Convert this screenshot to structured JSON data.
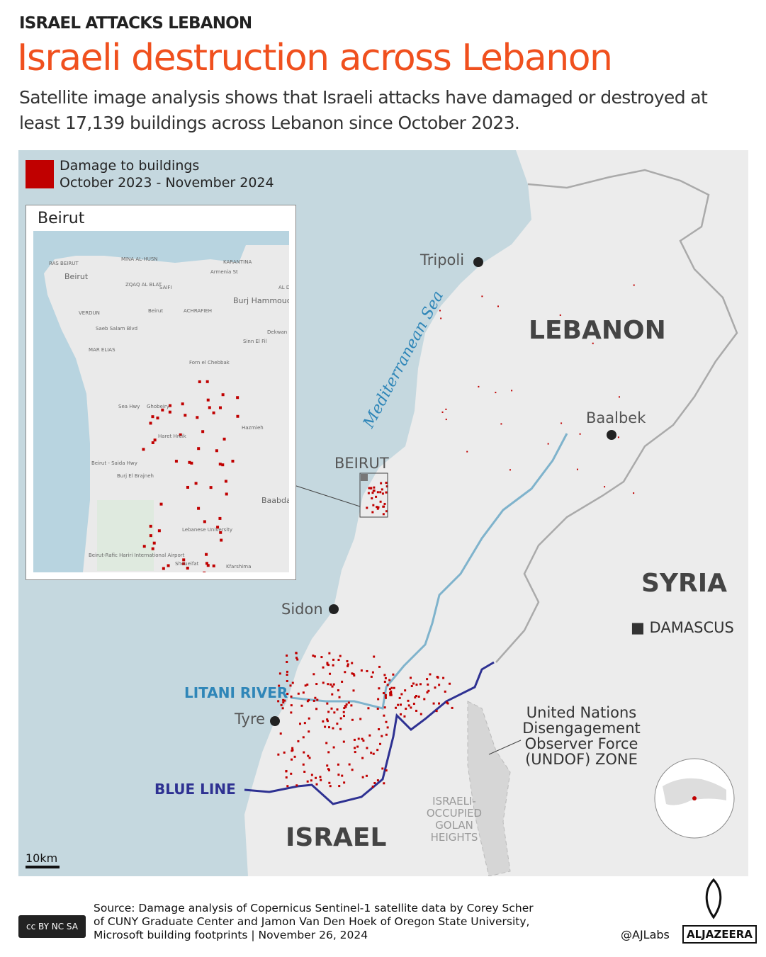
{
  "header": {
    "kicker": "ISRAEL ATTACKS LEBANON",
    "title": "Israeli destruction across Lebanon",
    "subtitle": "Satellite image analysis shows that Israeli attacks have damaged or destroyed at least 17,139 buildings across Lebanon since October 2023."
  },
  "legend": {
    "label": "Damage to buildings",
    "period": "October 2023 - November 2024",
    "color": "#c00000"
  },
  "inset": {
    "title": "Beirut",
    "labels": [
      "RAS BEIRUT",
      "MINA AL-HUSN",
      "KARANTINA",
      "Beirut",
      "ZQAQ AL BLAT",
      "SAIFI",
      "Armenia St",
      "AL D",
      "Burj Hammoud",
      "Beirut",
      "VERDUN",
      "ACHRAFIEH",
      "Dekwan",
      "Saeb Salam Blvd",
      "Sinn El Fil",
      "MAR ELIAS",
      "Forn el Chebbak",
      "Ghobeiry",
      "Hazmieh",
      "Haret Hreik",
      "Sea Hwy",
      "Beirut - Saida Hwy",
      "Burj El Brajneh",
      "Baabda",
      "Lebanese University",
      "Beirut-Rafic Hariri International Airport",
      "Shoueifat",
      "Kfarshima"
    ]
  },
  "map": {
    "sea_label": "Mediterranean Sea",
    "countries": {
      "lebanon": "LEBANON",
      "syria": "SYRIA",
      "israel": "ISRAEL"
    },
    "cities": {
      "tripoli": "Tripoli",
      "baalbek": "Baalbek",
      "beirut": "BEIRUT",
      "sidon": "Sidon",
      "tyre": "Tyre",
      "damascus": "DAMASCUS"
    },
    "litani": "LITANI RIVER",
    "blue_line": "BLUE LINE",
    "undof": "United Nations Disengagement Observer Force (UNDOF) ZONE",
    "golan": "ISRAELI-OCCUPIED GOLAN HEIGHTS",
    "scale": "10km",
    "colors": {
      "sea": "#c5d8df",
      "land": "#ececec",
      "river": "#7fb3cc",
      "blue_line": "#2e3192",
      "damage": "#c00000"
    }
  },
  "footer": {
    "source_line1": "Source:  Damage analysis of Copernicus Sentinel-1 satellite data by Corey Scher",
    "source_line2": "of CUNY Graduate Center and Jamon Van Den Hoek of Oregon State University,",
    "source_line3": "Microsoft building footprints    |     November 26, 2024",
    "license": "cc BY NC SA",
    "handle": "@AJLabs",
    "brand": "ALJAZEERA"
  }
}
